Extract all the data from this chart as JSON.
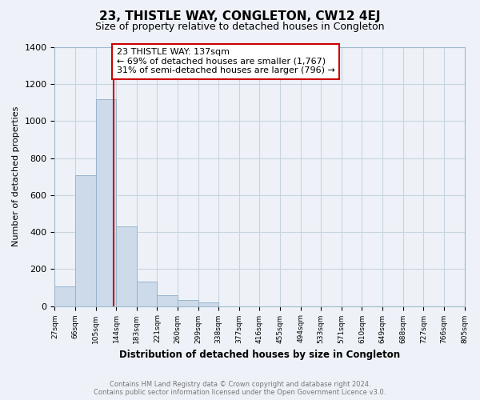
{
  "title": "23, THISTLE WAY, CONGLETON, CW12 4EJ",
  "subtitle": "Size of property relative to detached houses in Congleton",
  "xlabel": "Distribution of detached houses by size in Congleton",
  "ylabel": "Number of detached properties",
  "bin_labels": [
    "27sqm",
    "66sqm",
    "105sqm",
    "144sqm",
    "183sqm",
    "221sqm",
    "260sqm",
    "299sqm",
    "338sqm",
    "377sqm",
    "416sqm",
    "455sqm",
    "494sqm",
    "533sqm",
    "571sqm",
    "610sqm",
    "649sqm",
    "688sqm",
    "727sqm",
    "766sqm",
    "805sqm"
  ],
  "counts": [
    107,
    707,
    1120,
    432,
    132,
    57,
    32,
    18,
    0,
    0,
    0,
    0,
    0,
    0,
    0,
    0,
    0,
    0,
    0,
    0
  ],
  "bar_color": "#ccdaea",
  "bar_edge_color": "#9ab4cc",
  "marker_bin_index": 2.87,
  "marker_line_color": "#cc0000",
  "annotation_line1": "23 THISTLE WAY: 137sqm",
  "annotation_line2": "← 69% of detached houses are smaller (1,767)",
  "annotation_line3": "31% of semi-detached houses are larger (796) →",
  "annotation_box_color": "#ffffff",
  "annotation_box_edge": "#cc0000",
  "ylim": [
    0,
    1400
  ],
  "yticks": [
    0,
    200,
    400,
    600,
    800,
    1000,
    1200,
    1400
  ],
  "footer_line1": "Contains HM Land Registry data © Crown copyright and database right 2024.",
  "footer_line2": "Contains public sector information licensed under the Open Government Licence v3.0.",
  "background_color": "#eef2f8",
  "grid_color": "#c8d4e0",
  "title_fontsize": 11,
  "subtitle_fontsize": 9
}
